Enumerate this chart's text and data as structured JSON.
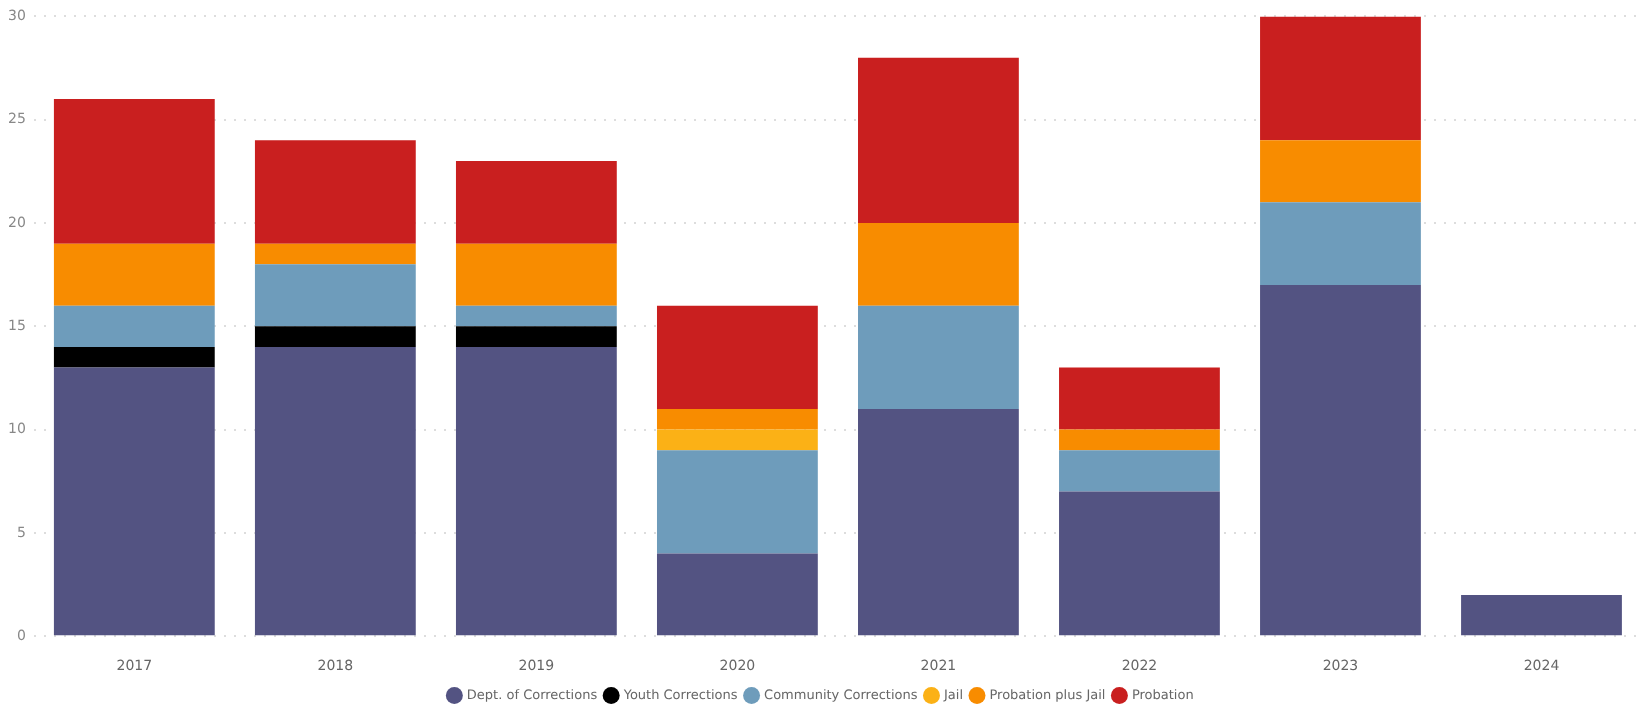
{
  "chart_data": {
    "type": "bar",
    "stacked": true,
    "categories": [
      "2017",
      "2018",
      "2019",
      "2020",
      "2021",
      "2022",
      "2023",
      "2024"
    ],
    "series": [
      {
        "name": "Dept. of Corrections",
        "color": "#535382",
        "values": [
          13,
          14,
          14,
          4,
          11,
          7,
          17,
          2
        ]
      },
      {
        "name": "Youth Corrections",
        "color": "#000000",
        "values": [
          1,
          1,
          1,
          null,
          null,
          null,
          null,
          null
        ]
      },
      {
        "name": "Community Corrections",
        "color": "#6e9cbb",
        "values": [
          2,
          3,
          1,
          5,
          5,
          2,
          4,
          null
        ]
      },
      {
        "name": "Jail",
        "color": "#fbb116",
        "values": [
          null,
          null,
          null,
          1,
          null,
          null,
          null,
          null
        ]
      },
      {
        "name": "Probation plus Jail",
        "color": "#f88c00",
        "values": [
          3,
          1,
          3,
          1,
          4,
          1,
          3,
          null
        ]
      },
      {
        "name": "Probation",
        "color": "#c91f1f",
        "values": [
          7,
          5,
          4,
          5,
          8,
          3,
          6,
          null
        ]
      }
    ],
    "ylim": [
      0,
      30
    ],
    "yticks": [
      0,
      5,
      10,
      15,
      20,
      25,
      30
    ],
    "grid": "y",
    "legend": "bottom"
  }
}
